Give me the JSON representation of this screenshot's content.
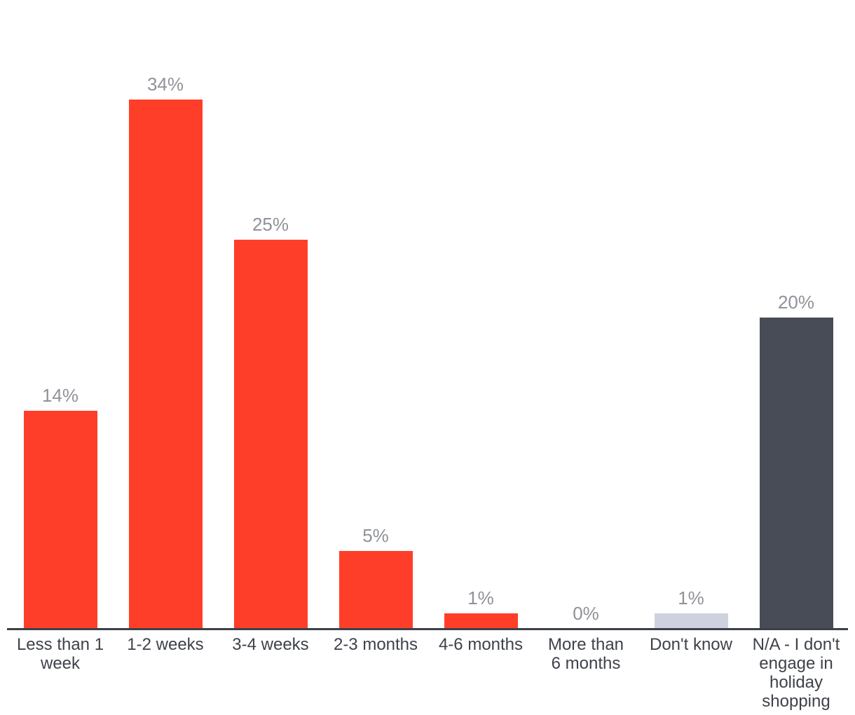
{
  "chart_data": {
    "type": "bar",
    "title": "",
    "xlabel": "",
    "ylabel": "",
    "categories": [
      "Less than 1\nweek",
      "1-2 weeks",
      "3-4 weeks",
      "2-3 months",
      "4-6 months",
      "More than\n6 months",
      "Don't know",
      "N/A - I don't\nengage in\nholiday\nshopping"
    ],
    "values": [
      14,
      34,
      25,
      5,
      1,
      0,
      1,
      20
    ],
    "value_labels": [
      "14%",
      "34%",
      "25%",
      "5%",
      "1%",
      "0%",
      "1%",
      "20%"
    ],
    "bar_colors": [
      "#ff3e29",
      "#ff3e29",
      "#ff3e29",
      "#ff3e29",
      "#ff3e29",
      "#ff3e29",
      "#cdd2de",
      "#474c56"
    ],
    "ylim": [
      0,
      40
    ],
    "grid": false,
    "legend": false,
    "value_unit": "%",
    "colors": {
      "series_red": "#ff3e29",
      "dont_know_bar": "#cdd2de",
      "na_bar": "#474c56",
      "axis_line": "#3b4049",
      "value_label": "#8f9298",
      "category_label": "#3e4249",
      "background": "#ffffff"
    }
  }
}
